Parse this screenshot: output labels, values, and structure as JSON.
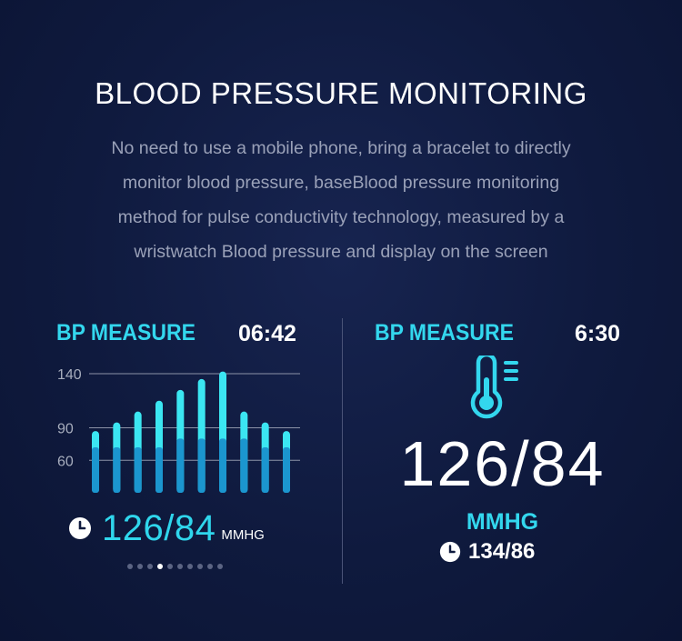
{
  "header": {
    "title": "BLOOD PRESSURE MONITORING",
    "description_lines": [
      "No need to use a mobile phone, bring a bracelet to directly",
      "monitor blood pressure, baseBlood pressure monitoring",
      "method for pulse conductivity technology, measured by a",
      "wristwatch Blood pressure and display on the screen"
    ]
  },
  "left_panel": {
    "label": "BP MEASURE",
    "time": "06:42",
    "reading": "126/84",
    "unit": "MMHG",
    "page_dots": 10,
    "active_dot_index": 3
  },
  "right_panel": {
    "label": "BP MEASURE",
    "time": "6:30",
    "icon": "thermometer-icon",
    "reading": "126/84",
    "unit": "MMHG",
    "last_reading": "134/86"
  },
  "colors": {
    "accent": "#33d7ee",
    "bar_light": "#3be6f2",
    "bar_dark": "#1b96cf",
    "background": "#0f1a3e"
  },
  "chart_data": {
    "type": "bar",
    "title": "",
    "xlabel": "",
    "ylabel": "",
    "y_ticks": [
      140,
      90,
      60
    ],
    "ylim": [
      30,
      145
    ],
    "series": [
      {
        "values": [
          87,
          95,
          105,
          115,
          125,
          135,
          142,
          105,
          95,
          87
        ]
      },
      {
        "values": [
          72,
          72,
          72,
          72,
          80,
          80,
          80,
          80,
          72,
          72
        ]
      }
    ]
  }
}
